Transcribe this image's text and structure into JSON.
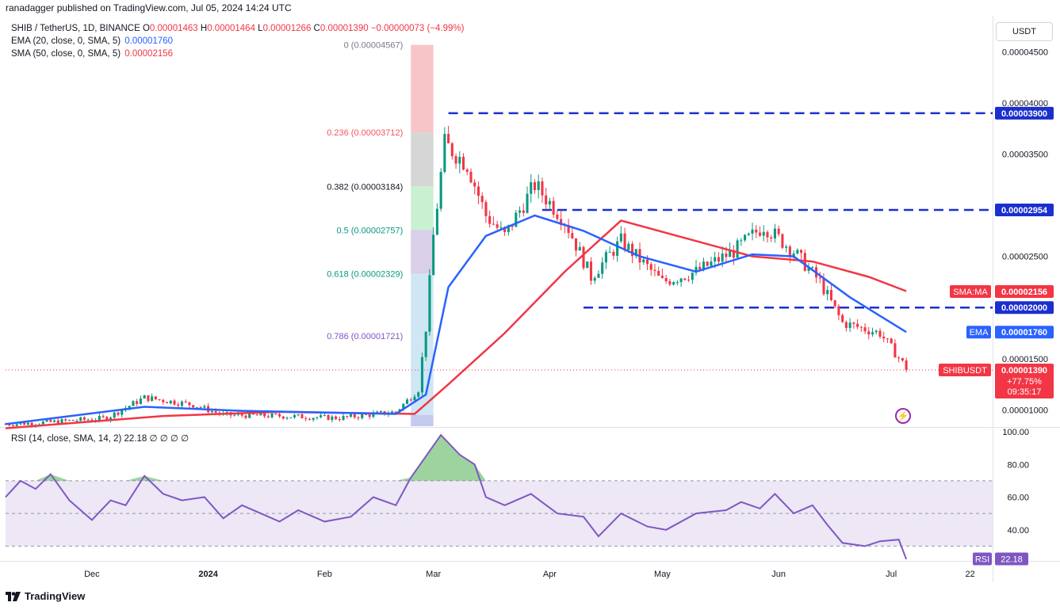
{
  "header": {
    "publisher": "ranadagger published on TradingView.com, Jul 05, 2024 14:24 UTC",
    "symbol": "SHIB / TetherUS, 1D, BINANCE",
    "o_label": "O",
    "o": "0.00001463",
    "h_label": "H",
    "h": "0.00001464",
    "l_label": "L",
    "l": "0.00001266",
    "c_label": "C",
    "c": "0.00001390",
    "change": "−0.00000073 (−4.99%)",
    "ema_label": "EMA (20, close, 0, SMA, 5)",
    "ema_value": "0.00001760",
    "sma_label": "SMA (50, close, 0, SMA, 5)",
    "sma_value": "0.00002156",
    "currency_button": "USDT"
  },
  "colors": {
    "up": "#089981",
    "down": "#f23645",
    "ema": "#2962ff",
    "sma": "#f23645",
    "level_line": "#1b2fcf",
    "rsi": "#7e57c2",
    "rsi_band": "#ede7f6"
  },
  "footer": {
    "brand": "TradingView",
    "logo": "tradingview-logo-icon"
  },
  "chart_data": [
    {
      "type": "candlestick",
      "title": "SHIB / TetherUS, 1D, BINANCE",
      "x_range": [
        "2023-11-08",
        "2024-07-28"
      ],
      "y_range": [
        8.4e-06,
        4.65e-05
      ],
      "x_ticks": [
        "Dec",
        "2024",
        "Feb",
        "Mar",
        "Apr",
        "May",
        "Jun",
        "Jul",
        "22"
      ],
      "y_ticks": [
        "0.00001000",
        "0.00001500",
        "0.00002500",
        "0.00003500",
        "0.00004000",
        "0.00004500"
      ],
      "key_points": [
        {
          "date": "2023-11-08",
          "close": 8.6e-06
        },
        {
          "date": "2023-11-20",
          "close": 8.8e-06
        },
        {
          "date": "2023-12-05",
          "close": 9.2e-06
        },
        {
          "date": "2023-12-15",
          "close": 1.12e-05
        },
        {
          "date": "2023-12-28",
          "close": 1.05e-05
        },
        {
          "date": "2024-01-05",
          "close": 9.5e-06
        },
        {
          "date": "2024-01-20",
          "close": 9.4e-06
        },
        {
          "date": "2024-02-05",
          "close": 9.2e-06
        },
        {
          "date": "2024-02-20",
          "close": 9.8e-06
        },
        {
          "date": "2024-02-26",
          "close": 1.2e-05
        },
        {
          "date": "2024-02-28",
          "close": 1.8e-05
        },
        {
          "date": "2024-03-01",
          "close": 2.7e-05
        },
        {
          "date": "2024-03-04",
          "close": 3.6e-05
        },
        {
          "date": "2024-03-10",
          "close": 3.4e-05
        },
        {
          "date": "2024-03-15",
          "close": 2.9e-05
        },
        {
          "date": "2024-03-20",
          "close": 2.7e-05
        },
        {
          "date": "2024-03-28",
          "close": 3.2e-05
        },
        {
          "date": "2024-04-05",
          "close": 2.85e-05
        },
        {
          "date": "2024-04-12",
          "close": 2.3e-05
        },
        {
          "date": "2024-04-20",
          "close": 2.65e-05
        },
        {
          "date": "2024-05-01",
          "close": 2.25e-05
        },
        {
          "date": "2024-05-10",
          "close": 2.35e-05
        },
        {
          "date": "2024-05-20",
          "close": 2.55e-05
        },
        {
          "date": "2024-05-28",
          "close": 2.8e-05
        },
        {
          "date": "2024-06-05",
          "close": 2.55e-05
        },
        {
          "date": "2024-06-12",
          "close": 2.25e-05
        },
        {
          "date": "2024-06-18",
          "close": 1.85e-05
        },
        {
          "date": "2024-06-28",
          "close": 1.75e-05
        },
        {
          "date": "2024-07-04",
          "close": 1.46e-05
        },
        {
          "date": "2024-07-05",
          "close": 1.39e-05
        }
      ],
      "ema_20": [
        {
          "date": "2023-11-08",
          "v": 8.6e-06
        },
        {
          "date": "2023-12-15",
          "v": 1.03e-05
        },
        {
          "date": "2024-01-10",
          "v": 9.9e-06
        },
        {
          "date": "2024-02-20",
          "v": 9.6e-06
        },
        {
          "date": "2024-02-28",
          "v": 1.15e-05
        },
        {
          "date": "2024-03-05",
          "v": 2.2e-05
        },
        {
          "date": "2024-03-15",
          "v": 2.7e-05
        },
        {
          "date": "2024-03-28",
          "v": 2.9e-05
        },
        {
          "date": "2024-04-10",
          "v": 2.75e-05
        },
        {
          "date": "2024-04-25",
          "v": 2.5e-05
        },
        {
          "date": "2024-05-10",
          "v": 2.35e-05
        },
        {
          "date": "2024-05-25",
          "v": 2.52e-05
        },
        {
          "date": "2024-06-05",
          "v": 2.5e-05
        },
        {
          "date": "2024-06-20",
          "v": 2.1e-05
        },
        {
          "date": "2024-07-05",
          "v": 1.76e-05
        }
      ],
      "sma_50": [
        {
          "date": "2023-11-08",
          "v": 8.2e-06
        },
        {
          "date": "2023-12-20",
          "v": 9.4e-06
        },
        {
          "date": "2024-01-20",
          "v": 9.8e-06
        },
        {
          "date": "2024-02-25",
          "v": 9.6e-06
        },
        {
          "date": "2024-03-05",
          "v": 1.25e-05
        },
        {
          "date": "2024-03-20",
          "v": 1.75e-05
        },
        {
          "date": "2024-04-05",
          "v": 2.35e-05
        },
        {
          "date": "2024-04-20",
          "v": 2.85e-05
        },
        {
          "date": "2024-05-05",
          "v": 2.7e-05
        },
        {
          "date": "2024-05-25",
          "v": 2.5e-05
        },
        {
          "date": "2024-06-10",
          "v": 2.45e-05
        },
        {
          "date": "2024-06-25",
          "v": 2.3e-05
        },
        {
          "date": "2024-07-05",
          "v": 2.16e-05
        }
      ],
      "fib_retracement": {
        "range": [
          "2024-02-24",
          "2024-03-01"
        ],
        "levels": [
          {
            "ratio": "0",
            "value": 4.567e-05,
            "label": "0 (0.00004567)",
            "fill": "#f8c5c7"
          },
          {
            "ratio": "0.236",
            "value": 3.712e-05,
            "label": "0.236 (0.00003712)",
            "fill": "#d6d6d6"
          },
          {
            "ratio": "0.382",
            "value": 3.184e-05,
            "label": "0.382 (0.00003184)",
            "fill": "#c9f0d1"
          },
          {
            "ratio": "0.5",
            "value": 2.757e-05,
            "label": "0.5 (0.00002757)",
            "fill": "#d9cfe8"
          },
          {
            "ratio": "0.618",
            "value": 2.329e-05,
            "label": "0.618 (0.00002329)",
            "fill": "#cfe6f5"
          },
          {
            "ratio": "0.786",
            "value": 1.721e-05,
            "label": "0.786 (0.00001721)",
            "fill": "#cfe6f5"
          },
          {
            "ratio": "1",
            "value": 9.5e-06,
            "label": "",
            "fill": "#c6c9f0"
          }
        ]
      },
      "horizontal_levels": [
        {
          "value": 3.9e-05,
          "label": "0.00003900",
          "from": "2024-03-05"
        },
        {
          "value": 2.954e-05,
          "label": "0.00002954",
          "from": "2024-03-30"
        },
        {
          "value": 2e-05,
          "label": "0.00002000",
          "from": "2024-04-10"
        }
      ],
      "price_tags": [
        {
          "name": "SMA:MA",
          "value": 2.156e-05,
          "label": "0.00002156",
          "color": "#f23645"
        },
        {
          "name": "EMA",
          "value": 1.76e-05,
          "label": "0.00001760",
          "color": "#2962ff"
        },
        {
          "name": "SHIBUSDT",
          "value": 1.39e-05,
          "label": "0.00001390",
          "extra": [
            "+77.75%",
            "09:35:17"
          ],
          "color": "#f23645"
        }
      ]
    },
    {
      "type": "line",
      "title": "RSI (14, close, SMA, 14, 2)",
      "legend": "RSI (14, close, SMA, 14, 2) 22.18 ∅ ∅ ∅ ∅",
      "y_range": [
        20,
        100
      ],
      "y_ticks": [
        "100.00",
        "80.00",
        "60.00",
        "40.00"
      ],
      "bands": [
        30,
        50,
        70
      ],
      "tag": {
        "name": "RSI",
        "label": "22.18"
      },
      "points": [
        {
          "date": "2023-11-08",
          "v": 60
        },
        {
          "date": "2023-11-12",
          "v": 70
        },
        {
          "date": "2023-11-16",
          "v": 65
        },
        {
          "date": "2023-11-20",
          "v": 74
        },
        {
          "date": "2023-11-25",
          "v": 58
        },
        {
          "date": "2023-12-01",
          "v": 46
        },
        {
          "date": "2023-12-06",
          "v": 58
        },
        {
          "date": "2023-12-10",
          "v": 55
        },
        {
          "date": "2023-12-15",
          "v": 73
        },
        {
          "date": "2023-12-20",
          "v": 62
        },
        {
          "date": "2023-12-25",
          "v": 58
        },
        {
          "date": "2023-12-31",
          "v": 60
        },
        {
          "date": "2024-01-05",
          "v": 47
        },
        {
          "date": "2024-01-10",
          "v": 55
        },
        {
          "date": "2024-01-15",
          "v": 50
        },
        {
          "date": "2024-01-20",
          "v": 45
        },
        {
          "date": "2024-01-25",
          "v": 52
        },
        {
          "date": "2024-02-01",
          "v": 45
        },
        {
          "date": "2024-02-08",
          "v": 48
        },
        {
          "date": "2024-02-14",
          "v": 60
        },
        {
          "date": "2024-02-20",
          "v": 55
        },
        {
          "date": "2024-02-24",
          "v": 72
        },
        {
          "date": "2024-02-28",
          "v": 85
        },
        {
          "date": "2024-03-03",
          "v": 98
        },
        {
          "date": "2024-03-08",
          "v": 86
        },
        {
          "date": "2024-03-12",
          "v": 80
        },
        {
          "date": "2024-03-15",
          "v": 60
        },
        {
          "date": "2024-03-20",
          "v": 55
        },
        {
          "date": "2024-03-27",
          "v": 62
        },
        {
          "date": "2024-04-03",
          "v": 50
        },
        {
          "date": "2024-04-10",
          "v": 48
        },
        {
          "date": "2024-04-14",
          "v": 36
        },
        {
          "date": "2024-04-20",
          "v": 50
        },
        {
          "date": "2024-04-27",
          "v": 42
        },
        {
          "date": "2024-05-02",
          "v": 40
        },
        {
          "date": "2024-05-10",
          "v": 50
        },
        {
          "date": "2024-05-18",
          "v": 52
        },
        {
          "date": "2024-05-22",
          "v": 57
        },
        {
          "date": "2024-05-27",
          "v": 53
        },
        {
          "date": "2024-05-31",
          "v": 62
        },
        {
          "date": "2024-06-05",
          "v": 50
        },
        {
          "date": "2024-06-10",
          "v": 55
        },
        {
          "date": "2024-06-14",
          "v": 43
        },
        {
          "date": "2024-06-18",
          "v": 32
        },
        {
          "date": "2024-06-24",
          "v": 30
        },
        {
          "date": "2024-06-28",
          "v": 33
        },
        {
          "date": "2024-07-03",
          "v": 34
        },
        {
          "date": "2024-07-05",
          "v": 22
        }
      ]
    }
  ]
}
